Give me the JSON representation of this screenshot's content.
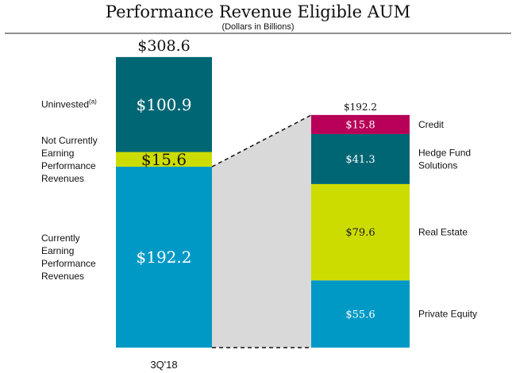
{
  "chart_data": {
    "type": "bar",
    "subtype": "stacked-bar-breakdown",
    "title": "Performance Revenue Eligible AUM",
    "subtitle": "(Dollars in Billions)",
    "units": "$ billions",
    "bars": [
      {
        "category": "3Q'18",
        "total_label": "$308.6",
        "total": 308.6,
        "segments": [
          {
            "name": "Currently Earning Performance Revenues",
            "label_lines": [
              "Currently",
              "Earning",
              "Performance",
              "Revenues"
            ],
            "value": 192.2,
            "value_label": "$192.2",
            "color": "#0099c6",
            "text_color": "#ffffff"
          },
          {
            "name": "Not Currently Earning Performance Revenues",
            "label_lines": [
              "Not Currently",
              "Earning",
              "Performance",
              "Revenues"
            ],
            "value": 15.6,
            "value_label": "$15.6",
            "color": "#cddc00",
            "text_color": "#1a1a1a"
          },
          {
            "name": "Uninvested(a)",
            "label_lines": [
              "Uninvested"
            ],
            "footnote": "(a)",
            "value": 100.9,
            "value_label": "$100.9",
            "color": "#006674",
            "text_color": "#ffffff"
          }
        ]
      },
      {
        "category": "",
        "total_label": "$192.2",
        "total": 192.2,
        "breakdown_of": "Currently Earning Performance Revenues",
        "segments": [
          {
            "name": "Private Equity",
            "label_lines": [
              "Private Equity"
            ],
            "value": 55.6,
            "value_label": "$55.6",
            "color": "#0099c6",
            "text_color": "#ffffff"
          },
          {
            "name": "Real Estate",
            "label_lines": [
              "Real Estate"
            ],
            "value": 79.6,
            "value_label": "$79.6",
            "color": "#cddc00",
            "text_color": "#1a1a1a"
          },
          {
            "name": "Hedge Fund Solutions",
            "label_lines": [
              "Hedge Fund",
              "Solutions"
            ],
            "value": 41.3,
            "value_label": "$41.3",
            "color": "#006674",
            "text_color": "#ffffff"
          },
          {
            "name": "Credit",
            "label_lines": [
              "Credit"
            ],
            "value": 15.8,
            "value_label": "$15.8",
            "color": "#b80058",
            "text_color": "#ffffff"
          }
        ]
      }
    ],
    "connector_color": "#d9d9d9",
    "legend": "none",
    "grid": false
  }
}
